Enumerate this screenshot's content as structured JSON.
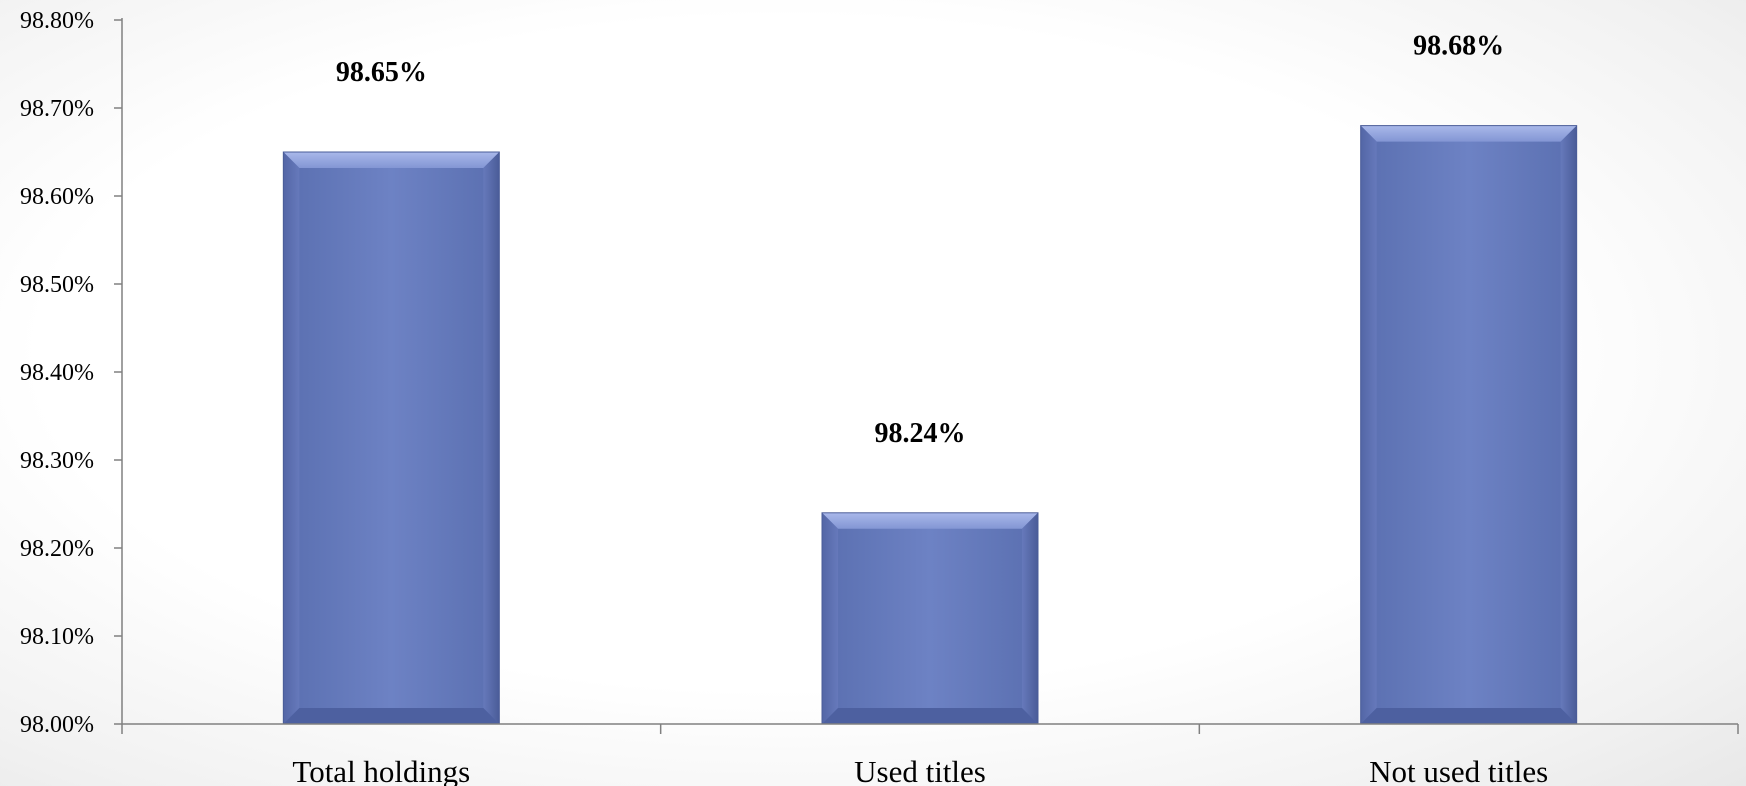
{
  "chart_data": {
    "type": "bar",
    "title": "",
    "xlabel": "",
    "ylabel": "",
    "categories": [
      "Total holdings",
      "Used titles",
      "Not used titles"
    ],
    "values": [
      98.65,
      98.24,
      98.68
    ],
    "value_labels": [
      "98.65%",
      "98.24%",
      "98.68%"
    ],
    "ylim": [
      98.0,
      98.8
    ],
    "yticks": [
      98.0,
      98.1,
      98.2,
      98.3,
      98.4,
      98.5,
      98.6,
      98.7,
      98.8
    ],
    "ytick_labels": [
      "98.00%",
      "98.10%",
      "98.20%",
      "98.30%",
      "98.40%",
      "98.50%",
      "98.60%",
      "98.70%",
      "98.80%"
    ],
    "grid": false,
    "legend": "none",
    "bar_color": "#6a80c2",
    "axis_color": "#808080"
  }
}
